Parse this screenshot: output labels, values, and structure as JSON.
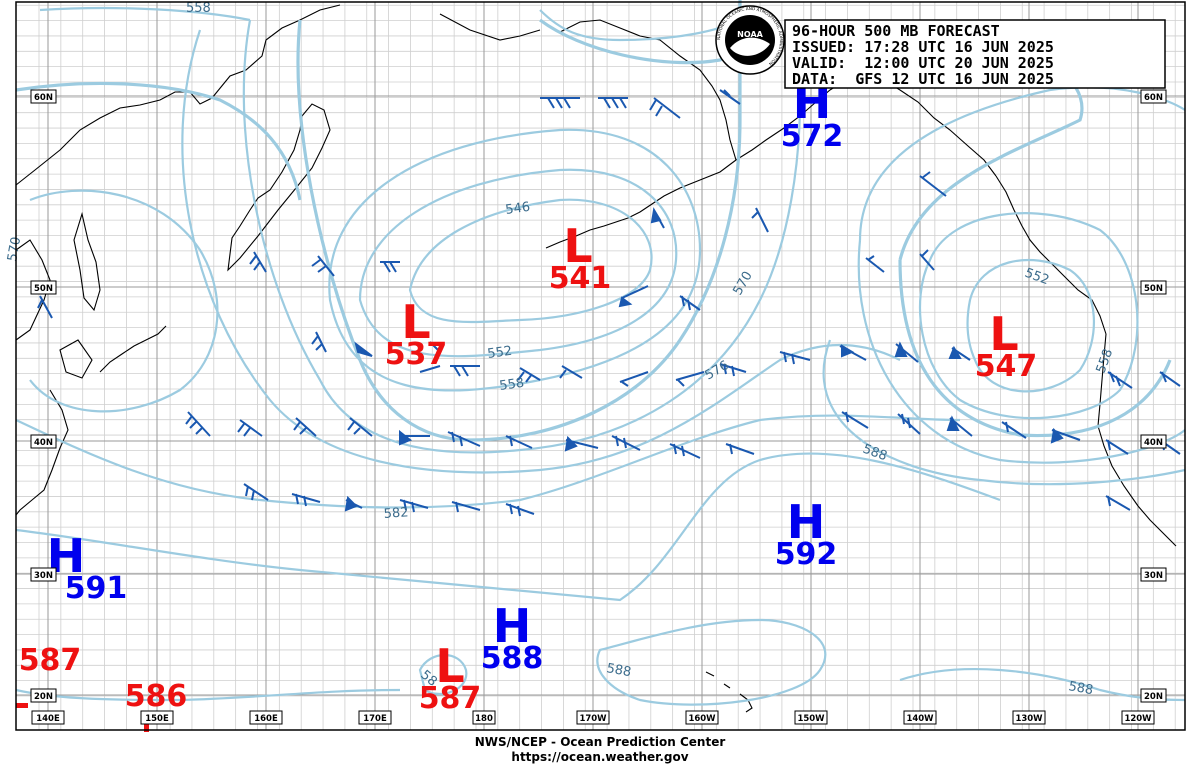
{
  "header": {
    "title": "96-HOUR 500 MB FORECAST",
    "issued": "ISSUED: 17:28 UTC 16 JUN 2025",
    "valid": "VALID:  12:00 UTC 20 JUN 2025",
    "data": "DATA:  GFS 12 UTC 16 JUN 2025"
  },
  "logo": {
    "text": "NOAA",
    "ring_text": "NATIONAL OCEANIC AND ATMOSPHERIC ADMINISTRATION"
  },
  "credits": {
    "line1": "NWS/NCEP - Ocean Prediction Center",
    "line2": "https://ocean.weather.gov"
  },
  "latitude_labels": [
    "60N",
    "50N",
    "40N",
    "30N",
    "20N"
  ],
  "longitude_labels": [
    "140E",
    "150E",
    "160E",
    "170E",
    "180",
    "170W",
    "160W",
    "150W",
    "140W",
    "130W",
    "120W"
  ],
  "pressure_centers": [
    {
      "type": "H",
      "value": "572"
    },
    {
      "type": "L",
      "value": "541"
    },
    {
      "type": "L",
      "value": "537"
    },
    {
      "type": "L",
      "value": "547"
    },
    {
      "type": "H",
      "value": "592"
    },
    {
      "type": "H",
      "value": "591"
    },
    {
      "type": "H",
      "value": "588"
    },
    {
      "type": "L",
      "value": "587"
    },
    {
      "type": "",
      "value": "587"
    },
    {
      "type": "",
      "value": "586"
    }
  ],
  "contour_labels": [
    "558",
    "546",
    "552",
    "558",
    "570",
    "576",
    "582",
    "588",
    "588",
    "588",
    "552",
    "558",
    "570",
    "58"
  ],
  "colors": {
    "high": "#0000ee",
    "low": "#ee1111",
    "contour": "#9ccbe0",
    "contour_label": "#3c6c8c",
    "barb": "#1a58b0",
    "land": "#000000"
  }
}
